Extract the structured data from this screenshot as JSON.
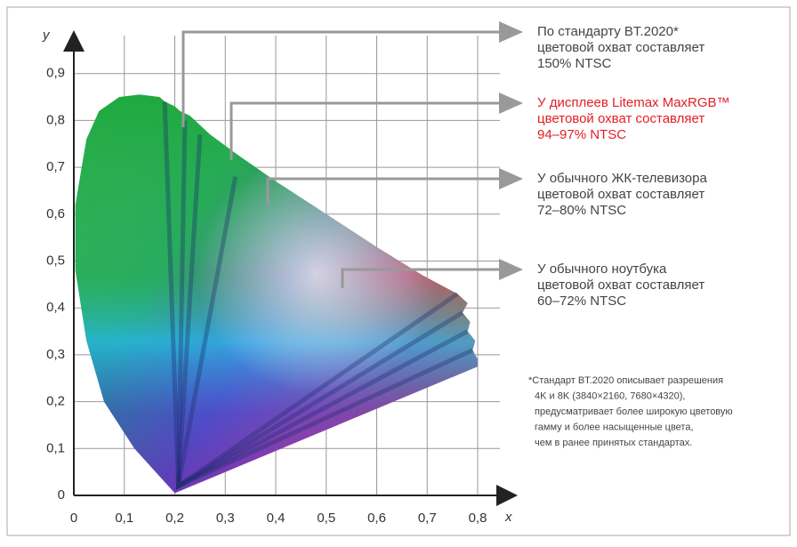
{
  "axes": {
    "x_label": "x",
    "y_label": "y",
    "x_ticks": [
      0,
      {
        "value": 0.1,
        "label": "0,1"
      },
      {
        "value": 0.2,
        "label": "0,2"
      },
      {
        "value": 0.3,
        "label": "0,3"
      },
      {
        "value": 0.4,
        "label": "0,4"
      },
      {
        "value": 0.5,
        "label": "0,5"
      },
      {
        "value": 0.6,
        "label": "0,6"
      },
      {
        "value": 0.7,
        "label": "0,7"
      },
      {
        "value": 0.8,
        "label": "0,8"
      }
    ],
    "y_ticks": [
      0,
      {
        "value": 0.1,
        "label": "0,1"
      },
      {
        "value": 0.2,
        "label": "0,2"
      },
      {
        "value": 0.3,
        "label": "0,3"
      },
      {
        "value": 0.4,
        "label": "0,4"
      },
      {
        "value": 0.5,
        "label": "0,5"
      },
      {
        "value": 0.6,
        "label": "0,6"
      },
      {
        "value": 0.7,
        "label": "0,7"
      },
      {
        "value": 0.8,
        "label": "0,8"
      },
      {
        "value": 0.9,
        "label": "0,9"
      }
    ]
  },
  "callouts": [
    {
      "lines": [
        "По стандарту BT.2020*",
        "цветовой охват составляет",
        "150% NTSC"
      ]
    },
    {
      "lines": [
        "У дисплеев Litemax MaxRGB™",
        "цветовой охват составляет",
        "94–97% NTSC"
      ]
    },
    {
      "lines": [
        "У обычного ЖК-телевизора",
        "цветовой охват составляет",
        "72–80% NTSC"
      ]
    },
    {
      "lines": [
        "У обычного ноутбука",
        "цветовой охват составляет",
        "60–72% NTSC"
      ]
    }
  ],
  "footnote": {
    "lines": [
      "*Стандарт BT.2020 описывает разрешения",
      "4K и 8K (3840×2160, 7680×4320),",
      "предусматривает более широкую цветовую",
      "гамму и более насыщенные цвета,",
      "чем в ранее принятых стандартах."
    ]
  }
}
